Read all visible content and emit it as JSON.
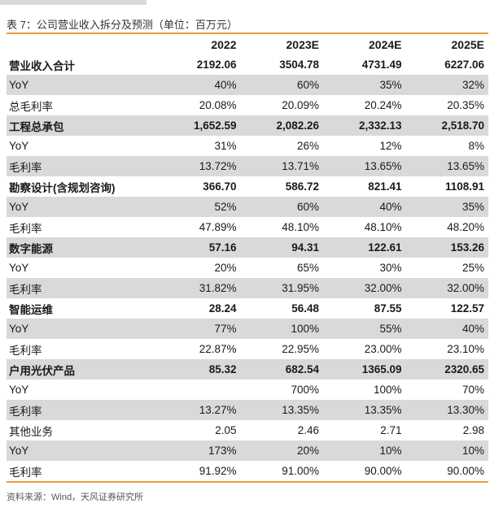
{
  "caption": "表 7：公司营业收入拆分及预测（单位：百万元）",
  "source": "资料来源：Wind，天风证券研究所",
  "table": {
    "header": [
      "",
      "2022",
      "2023E",
      "2024E",
      "2025E"
    ],
    "rows": [
      {
        "label": "营业收入合计",
        "values": [
          "2192.06",
          "3504.78",
          "4731.49",
          "6227.06"
        ],
        "segment": true,
        "shaded": false
      },
      {
        "label": "YoY",
        "values": [
          "40%",
          "60%",
          "35%",
          "32%"
        ],
        "segment": false,
        "shaded": true
      },
      {
        "label": "总毛利率",
        "values": [
          "20.08%",
          "20.09%",
          "20.24%",
          "20.35%"
        ],
        "segment": false,
        "shaded": false
      },
      {
        "label": "工程总承包",
        "values": [
          "1,652.59",
          "2,082.26",
          "2,332.13",
          "2,518.70"
        ],
        "segment": true,
        "shaded": true
      },
      {
        "label": "YoY",
        "values": [
          "31%",
          "26%",
          "12%",
          "8%"
        ],
        "segment": false,
        "shaded": false
      },
      {
        "label": "毛利率",
        "values": [
          "13.72%",
          "13.71%",
          "13.65%",
          "13.65%"
        ],
        "segment": false,
        "shaded": true
      },
      {
        "label": "勘察设计(含规划咨询)",
        "values": [
          "366.70",
          "586.72",
          "821.41",
          "1108.91"
        ],
        "segment": true,
        "shaded": false
      },
      {
        "label": "YoY",
        "values": [
          "52%",
          "60%",
          "40%",
          "35%"
        ],
        "segment": false,
        "shaded": true
      },
      {
        "label": "毛利率",
        "values": [
          "47.89%",
          "48.10%",
          "48.10%",
          "48.20%"
        ],
        "segment": false,
        "shaded": false
      },
      {
        "label": "数字能源",
        "values": [
          "57.16",
          "94.31",
          "122.61",
          "153.26"
        ],
        "segment": true,
        "shaded": true
      },
      {
        "label": "YoY",
        "values": [
          "20%",
          "65%",
          "30%",
          "25%"
        ],
        "segment": false,
        "shaded": false
      },
      {
        "label": "毛利率",
        "values": [
          "31.82%",
          "31.95%",
          "32.00%",
          "32.00%"
        ],
        "segment": false,
        "shaded": true
      },
      {
        "label": "智能运维",
        "values": [
          "28.24",
          "56.48",
          "87.55",
          "122.57"
        ],
        "segment": true,
        "shaded": false
      },
      {
        "label": "YoY",
        "values": [
          "77%",
          "100%",
          "55%",
          "40%"
        ],
        "segment": false,
        "shaded": true
      },
      {
        "label": "毛利率",
        "values": [
          "22.87%",
          "22.95%",
          "23.00%",
          "23.10%"
        ],
        "segment": false,
        "shaded": false
      },
      {
        "label": "户用光伏产品",
        "values": [
          "85.32",
          "682.54",
          "1365.09",
          "2320.65"
        ],
        "segment": true,
        "shaded": true
      },
      {
        "label": "YoY",
        "values": [
          "",
          "700%",
          "100%",
          "70%"
        ],
        "segment": false,
        "shaded": false
      },
      {
        "label": "毛利率",
        "values": [
          "13.27%",
          "13.35%",
          "13.35%",
          "13.30%"
        ],
        "segment": false,
        "shaded": true
      },
      {
        "label": "其他业务",
        "values": [
          "2.05",
          "2.46",
          "2.71",
          "2.98"
        ],
        "segment": false,
        "shaded": false
      },
      {
        "label": "YoY",
        "values": [
          "173%",
          "20%",
          "10%",
          "10%"
        ],
        "segment": false,
        "shaded": true
      },
      {
        "label": "毛利率",
        "values": [
          "91.92%",
          "91.00%",
          "90.00%",
          "90.00%"
        ],
        "segment": false,
        "shaded": false
      }
    ]
  }
}
